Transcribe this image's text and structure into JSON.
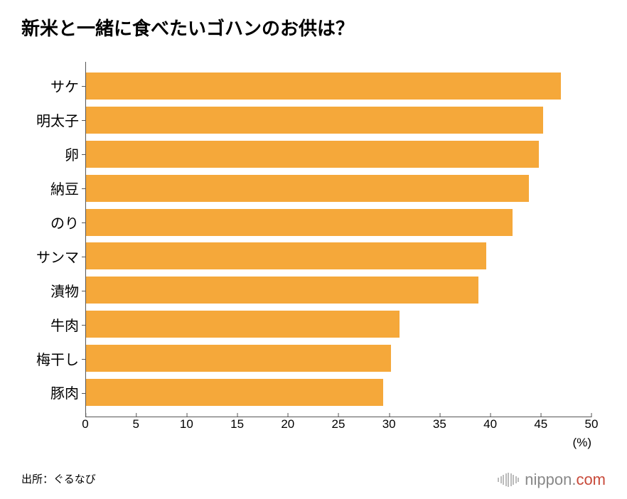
{
  "title": "新米と一緒に食べたいゴハンのお供は？",
  "chart": {
    "type": "bar",
    "orientation": "horizontal",
    "bar_color": "#f5a83a",
    "background_color": "#ffffff",
    "axis_color": "#555555",
    "label_color": "#000000",
    "title_fontsize": 26,
    "label_fontsize": 20,
    "tick_fontsize": 17,
    "xlim": [
      0,
      50
    ],
    "xtick_step": 5,
    "xticks": [
      0,
      5,
      10,
      15,
      20,
      25,
      30,
      35,
      40,
      45,
      50
    ],
    "x_unit": "(%)",
    "categories": [
      "サケ",
      "明太子",
      "卵",
      "納豆",
      "のり",
      "サンマ",
      "漬物",
      "牛肉",
      "梅干し",
      "豚肉"
    ],
    "values": [
      47.0,
      45.2,
      44.8,
      43.8,
      42.2,
      39.6,
      38.8,
      31.0,
      30.2,
      29.4
    ],
    "bar_width_ratio": 0.78
  },
  "source": "出所：ぐるなび",
  "logo": {
    "text_main": "nippon",
    "text_dot": ".",
    "text_suffix": "com",
    "main_color": "#888888",
    "suffix_color": "#c84a3a",
    "icon_bar_color": "#bbbbbb",
    "icon_heights": [
      6,
      10,
      14,
      18,
      20,
      18,
      14,
      10,
      6
    ]
  }
}
